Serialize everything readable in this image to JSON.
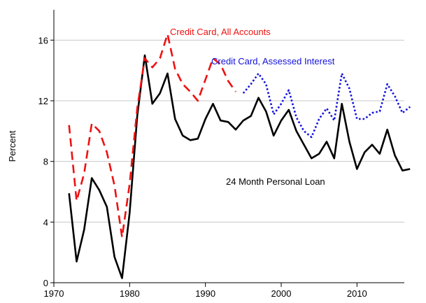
{
  "chart_data": {
    "type": "line",
    "ylabel": "Percent",
    "x": [
      1972,
      1973,
      1974,
      1975,
      1976,
      1977,
      1978,
      1979,
      1980,
      1981,
      1982,
      1983,
      1984,
      1985,
      1986,
      1987,
      1988,
      1989,
      1990,
      1991,
      1992,
      1993,
      1994,
      1995,
      1996,
      1997,
      1998,
      1999,
      2000,
      2001,
      2002,
      2003,
      2004,
      2005,
      2006,
      2007,
      2008,
      2009,
      2010,
      2011,
      2012,
      2013,
      2014,
      2015,
      2016,
      2017
    ],
    "series": [
      {
        "name": "24 Month Personal Loan",
        "color": "#000000",
        "style": "solid",
        "values": [
          5.9,
          1.4,
          3.5,
          6.9,
          6.1,
          5.0,
          1.7,
          0.3,
          4.6,
          11.0,
          15.0,
          11.8,
          12.5,
          13.8,
          10.8,
          9.7,
          9.4,
          9.5,
          10.8,
          11.8,
          10.7,
          10.6,
          10.1,
          10.7,
          11.0,
          12.2,
          11.3,
          9.7,
          10.7,
          11.4,
          10.0,
          9.1,
          8.2,
          8.5,
          9.3,
          8.2,
          11.8,
          9.3,
          7.5,
          8.6,
          9.1,
          8.5,
          10.1,
          8.4,
          7.4,
          7.5
        ]
      },
      {
        "name": "Credit Card, All Accounts",
        "color": "#ee1111",
        "style": "dashed",
        "values": [
          10.4,
          5.4,
          7.2,
          10.5,
          10.0,
          8.6,
          6.4,
          3.0,
          6.5,
          11.5,
          14.8,
          14.2,
          14.8,
          16.4,
          14.1,
          13.1,
          12.6,
          12.0,
          13.4,
          14.8,
          14.4,
          13.3,
          12.6,
          null,
          null,
          null,
          null,
          null,
          null,
          null,
          null,
          null,
          null,
          null,
          null,
          null,
          null,
          null,
          null,
          null,
          null,
          null,
          null,
          null,
          null,
          null
        ]
      },
      {
        "name": "Credit Card, Assessed Interest",
        "color": "#1111dd",
        "style": "dotted",
        "values": [
          null,
          null,
          null,
          null,
          null,
          null,
          null,
          null,
          null,
          null,
          null,
          null,
          null,
          null,
          null,
          null,
          null,
          null,
          null,
          null,
          null,
          null,
          null,
          12.5,
          13.1,
          13.8,
          13.1,
          11.1,
          11.8,
          12.7,
          10.9,
          10.0,
          9.6,
          10.8,
          11.5,
          10.7,
          13.8,
          12.8,
          10.8,
          10.8,
          11.2,
          11.3,
          13.1,
          12.3,
          11.2,
          11.6
        ]
      }
    ],
    "xlim": [
      1970,
      2018
    ],
    "xticks": [
      1970,
      1980,
      1990,
      2000,
      2010
    ],
    "ylim": [
      0,
      18
    ],
    "yticks": [
      0,
      4,
      8,
      12,
      16
    ],
    "grid": true
  }
}
